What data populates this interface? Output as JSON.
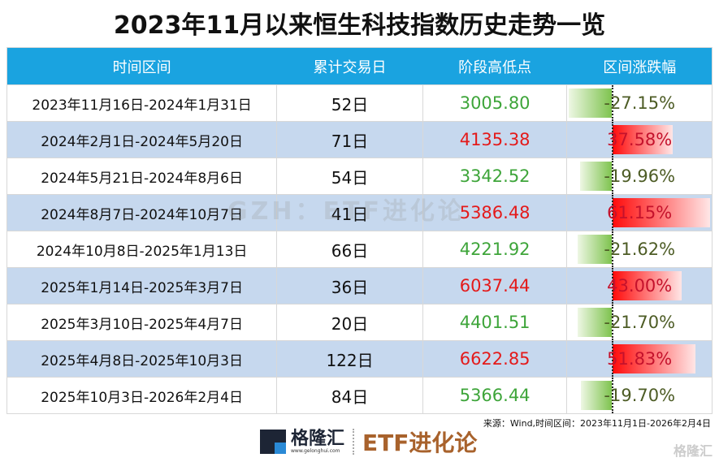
{
  "title": "2023年11月以来恒生科技指数历史走势一览",
  "headers": [
    "时间区间",
    "累计交易日",
    "阶段高低点",
    "区间涨跌幅"
  ],
  "rows": [
    {
      "period": "2023年11月16日-2024年1月31日",
      "days": "52日",
      "point": "3005.80",
      "change": "-27.15%",
      "value": -27.15,
      "dir": "down"
    },
    {
      "period": "2024年2月1日-2024年5月20日",
      "days": "71日",
      "point": "4135.38",
      "change": "37.58%",
      "value": 37.58,
      "dir": "up"
    },
    {
      "period": "2024年5月21日-2024年8月6日",
      "days": "54日",
      "point": "3342.52",
      "change": "-19.96%",
      "value": -19.96,
      "dir": "down"
    },
    {
      "period": "2024年8月7日-2024年10月7日",
      "days": "41日",
      "point": "5386.48",
      "change": "61.15%",
      "value": 61.15,
      "dir": "up"
    },
    {
      "period": "2024年10月8日-2025年1月13日",
      "days": "66日",
      "point": "4221.92",
      "change": "-21.62%",
      "value": -21.62,
      "dir": "down"
    },
    {
      "period": "2025年1月14日-2025年3月7日",
      "days": "36日",
      "point": "6037.44",
      "change": "43.00%",
      "value": 43.0,
      "dir": "up"
    },
    {
      "period": "2025年3月10日-2025年4月7日",
      "days": "20日",
      "point": "4401.51",
      "change": "-21.70%",
      "value": -21.7,
      "dir": "down"
    },
    {
      "period": "2025年4月8日-2025年10月3日",
      "days": "122日",
      "point": "6622.85",
      "change": "51.83%",
      "value": 51.83,
      "dir": "up"
    },
    {
      "period": "2025年10月3日-2026年2月4日",
      "days": "84日",
      "point": "5366.44",
      "change": "-19.70%",
      "value": -19.7,
      "dir": "down"
    }
  ],
  "watermark": "GZH：ETF进化论",
  "source": "来源：Wind,时间区间：2023年11月1日-2026年2月4日",
  "logo": {
    "name": "格隆汇",
    "url": "www.gelonghui.com",
    "brand": "ETF进化论"
  },
  "corner_watermark": "格隆汇"
}
